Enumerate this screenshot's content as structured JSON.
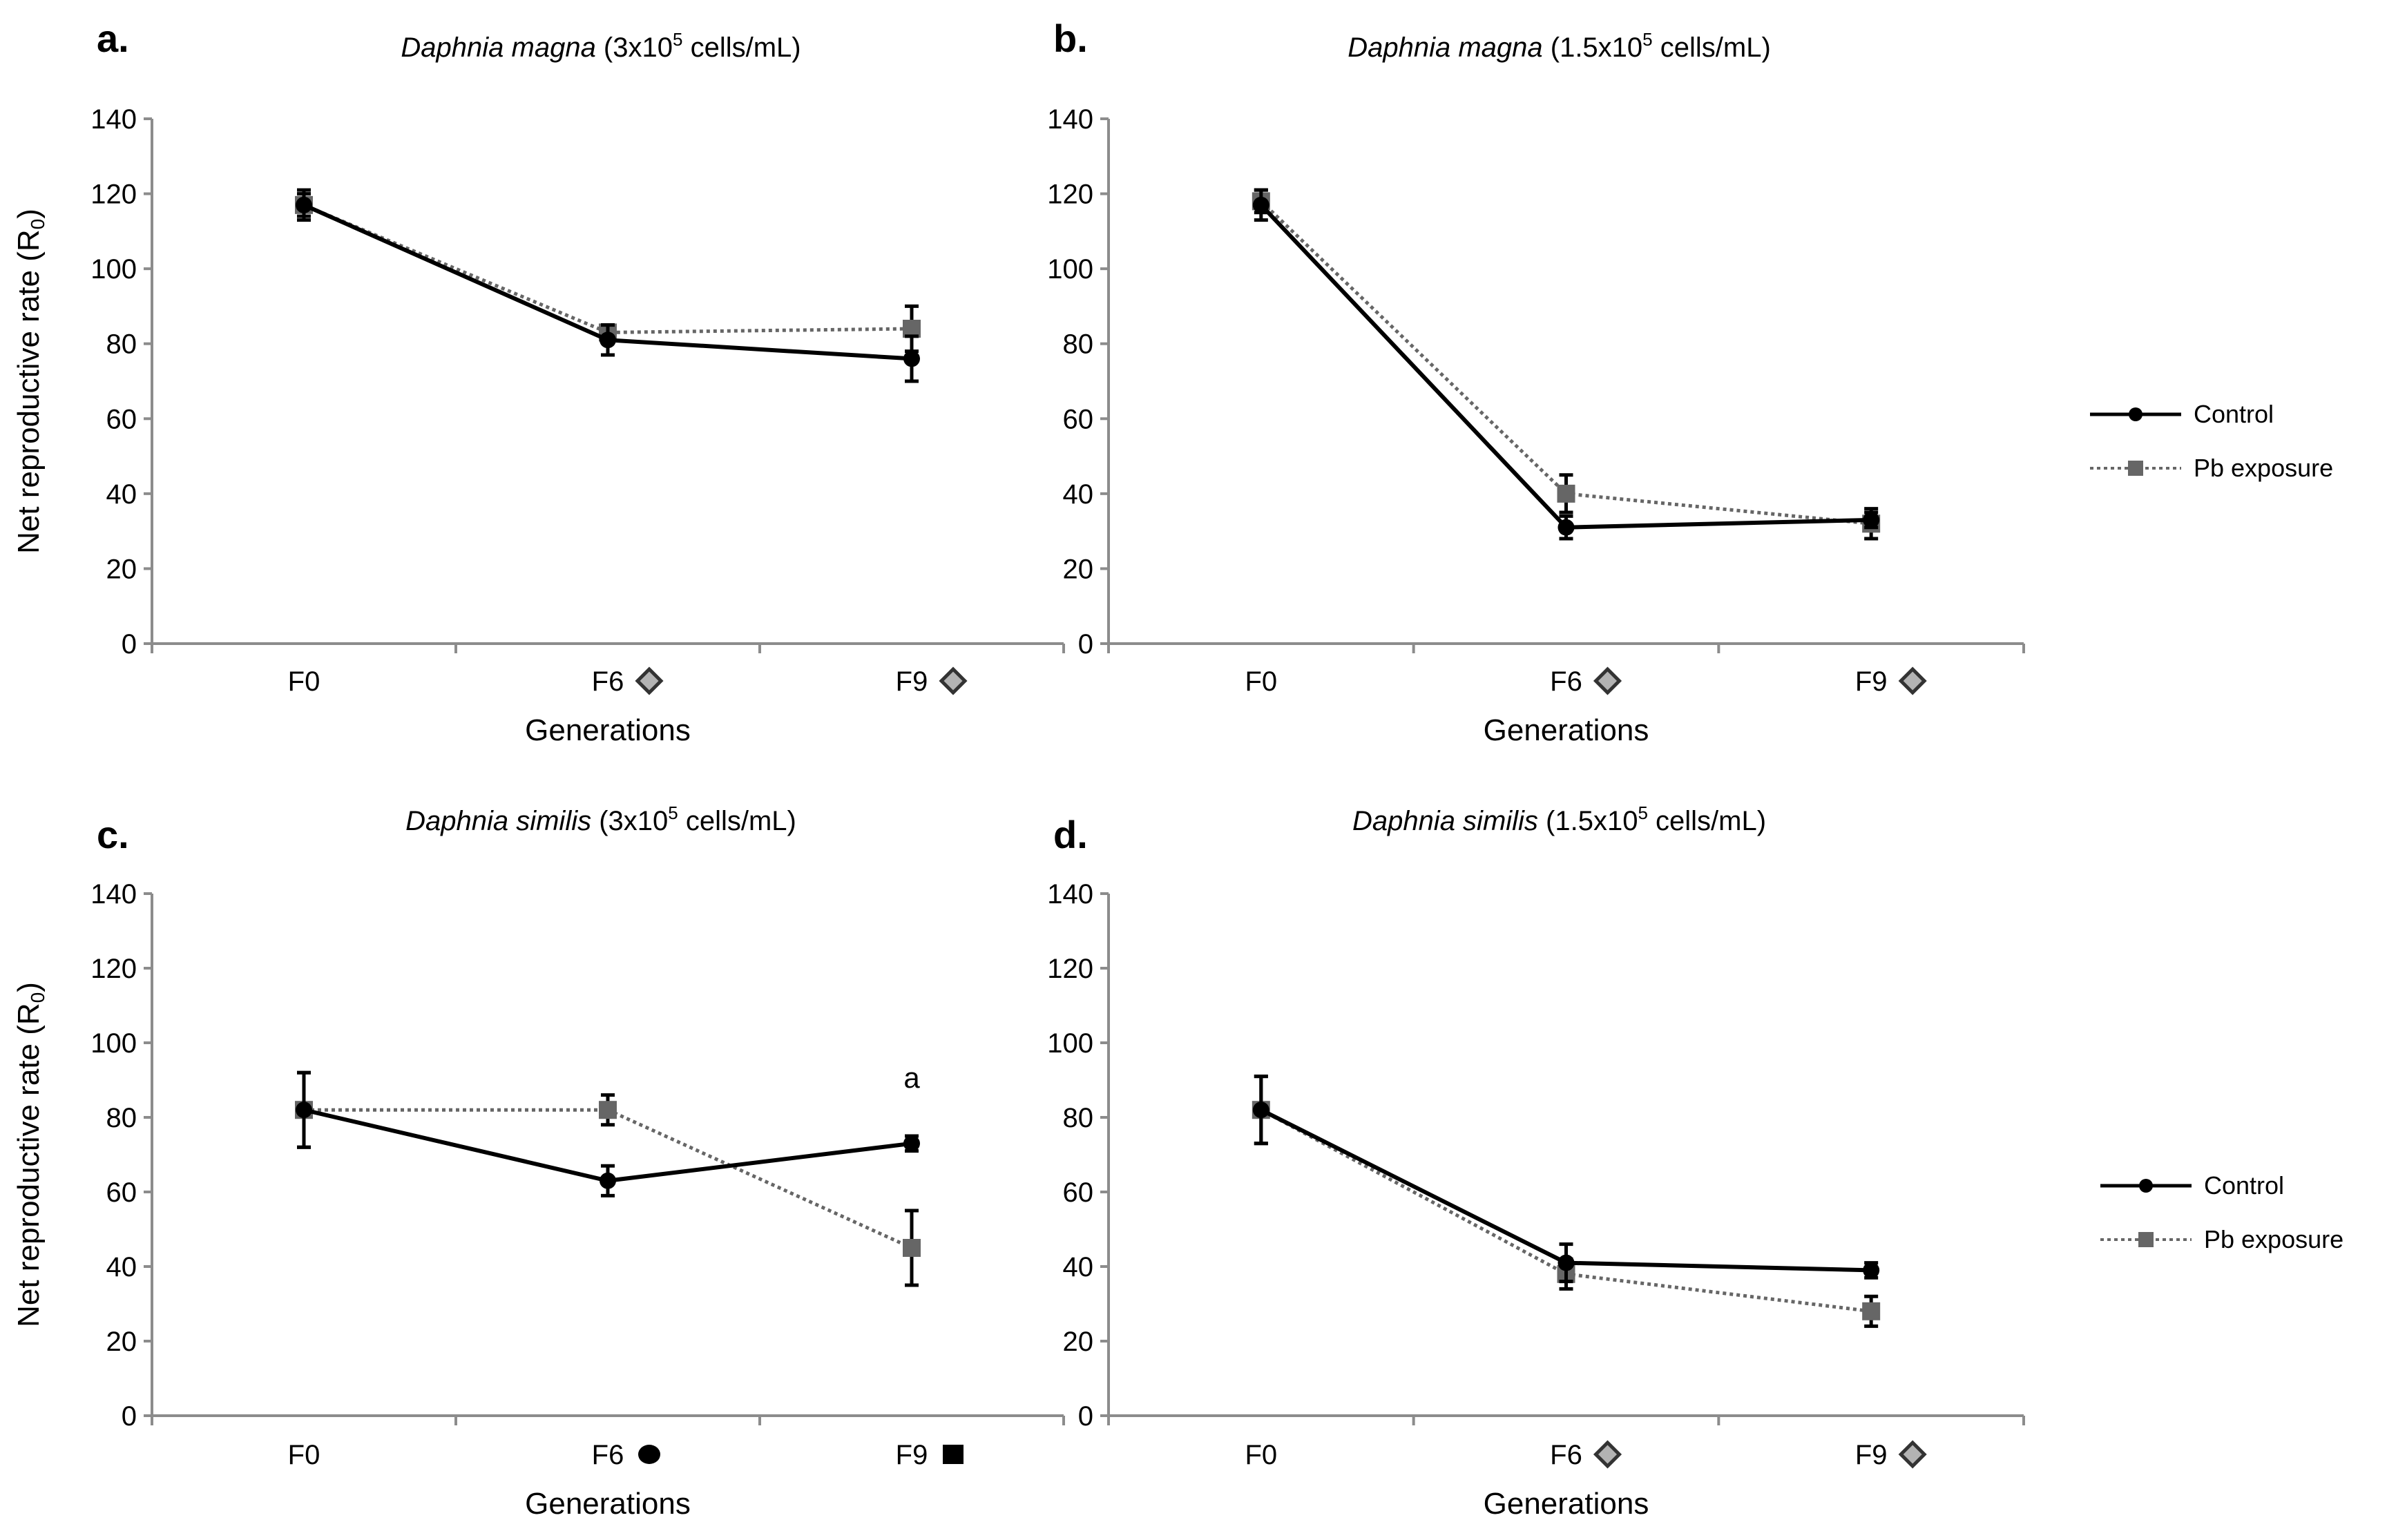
{
  "chart_data": [
    {
      "type": "line",
      "panel_label": "a.",
      "title": {
        "species": "Daphnia magna",
        "prefix": " (3x10",
        "sup": "5",
        "suffix": " cells/mL)"
      },
      "xlabel": "Generations",
      "ylabel": {
        "main": "Net reproductive rate (R",
        "sub": "0",
        "end": ")"
      },
      "ylim": [
        0,
        140
      ],
      "yticks": [
        0,
        20,
        40,
        60,
        80,
        100,
        120,
        140
      ],
      "categories": [
        "F0",
        "F6",
        "F9"
      ],
      "category_markers": [
        "",
        "diamond",
        "diamond"
      ],
      "series": [
        {
          "name": "Control",
          "values": [
            117,
            81,
            76
          ],
          "errors": [
            4,
            4,
            6
          ]
        },
        {
          "name": "Pb exposure",
          "values": [
            117,
            83,
            84
          ],
          "errors": [
            3,
            2,
            6
          ]
        }
      ],
      "annotations": [],
      "legend": false
    },
    {
      "type": "line",
      "panel_label": "b.",
      "title": {
        "species": "Daphnia magna",
        "prefix": " (1.5x10",
        "sup": "5",
        "suffix": " cells/mL)"
      },
      "xlabel": "Generations",
      "ylabel": null,
      "ylim": [
        0,
        140
      ],
      "yticks": [
        0,
        20,
        40,
        60,
        80,
        100,
        120,
        140
      ],
      "categories": [
        "F0",
        "F6",
        "F9"
      ],
      "category_markers": [
        "",
        "diamond",
        "diamond"
      ],
      "series": [
        {
          "name": "Control",
          "values": [
            117,
            31,
            33
          ],
          "errors": [
            4,
            3,
            2
          ]
        },
        {
          "name": "Pb exposure",
          "values": [
            118,
            40,
            32
          ],
          "errors": [
            3,
            5,
            4
          ]
        }
      ],
      "annotations": [],
      "legend": true
    },
    {
      "type": "line",
      "panel_label": "c.",
      "title": {
        "species": "Daphnia similis",
        "prefix": " (3x10",
        "sup": "5",
        "suffix": " cells/mL)"
      },
      "xlabel": "Generations",
      "ylabel": {
        "main": "Net reproductive rate (R",
        "sub": "0",
        "end": ")"
      },
      "ylim": [
        0,
        140
      ],
      "yticks": [
        0,
        20,
        40,
        60,
        80,
        100,
        120,
        140
      ],
      "categories": [
        "F0",
        "F6",
        "F9"
      ],
      "category_markers": [
        "",
        "circle",
        "square"
      ],
      "series": [
        {
          "name": "Control",
          "values": [
            82,
            63,
            73
          ],
          "errors": [
            10,
            4,
            2
          ]
        },
        {
          "name": "Pb exposure",
          "values": [
            82,
            82,
            45
          ],
          "errors": [
            10,
            4,
            10
          ]
        }
      ],
      "annotations": [
        {
          "category": "F9",
          "text": "a",
          "y": 88
        }
      ],
      "legend": false
    },
    {
      "type": "line",
      "panel_label": "d.",
      "title": {
        "species": "Daphnia similis",
        "prefix": " (1.5x10",
        "sup": "5",
        "suffix": " cells/mL)"
      },
      "xlabel": "Generations",
      "ylabel": null,
      "ylim": [
        0,
        140
      ],
      "yticks": [
        0,
        20,
        40,
        60,
        80,
        100,
        120,
        140
      ],
      "categories": [
        "F0",
        "F6",
        "F9"
      ],
      "category_markers": [
        "",
        "diamond",
        "diamond"
      ],
      "series": [
        {
          "name": "Control",
          "values": [
            82,
            41,
            39
          ],
          "errors": [
            9,
            5,
            2
          ]
        },
        {
          "name": "Pb exposure",
          "values": [
            82,
            38,
            28
          ],
          "errors": [
            9,
            4,
            4
          ]
        }
      ],
      "annotations": [],
      "legend": true
    }
  ],
  "colors": {
    "control": "#000000",
    "pb": "#666666",
    "axis": "#8c8c8c",
    "marker_diamond": "#b3b3b3"
  }
}
